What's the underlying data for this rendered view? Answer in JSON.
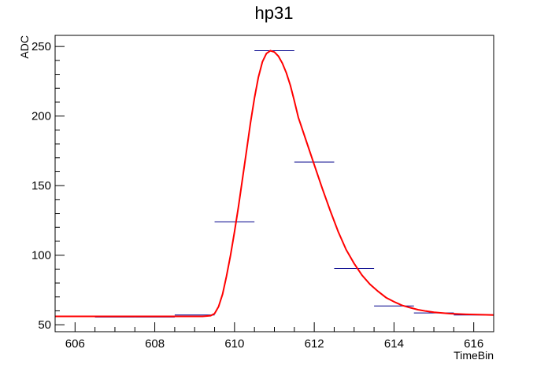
{
  "chart_data": {
    "type": "line",
    "title": "hp31",
    "xlabel": "TimeBin",
    "ylabel": "ADC",
    "xlim": [
      605.5,
      616.5
    ],
    "ylim": [
      45,
      258
    ],
    "x_ticks": [
      606,
      608,
      610,
      612,
      614,
      616
    ],
    "x_tick_labels": [
      "606",
      "608",
      "610",
      "612",
      "614",
      "616"
    ],
    "y_ticks": [
      50,
      100,
      150,
      200,
      250
    ],
    "y_tick_labels": [
      "50",
      "100",
      "150",
      "200",
      "250"
    ],
    "grid": false,
    "legend": "none",
    "histogram": {
      "color": "#00008b",
      "bins": [
        {
          "x": 606,
          "value": 56
        },
        {
          "x": 607,
          "value": 55.5
        },
        {
          "x": 608,
          "value": 55.5
        },
        {
          "x": 609,
          "value": 57
        },
        {
          "x": 610,
          "value": 124
        },
        {
          "x": 611,
          "value": 247
        },
        {
          "x": 612,
          "value": 167
        },
        {
          "x": 613,
          "value": 90.5
        },
        {
          "x": 614,
          "value": 63.5
        },
        {
          "x": 615,
          "value": 58.5
        },
        {
          "x": 616,
          "value": 57
        }
      ]
    },
    "fit": {
      "color": "#ff0000",
      "points": [
        [
          605.5,
          56
        ],
        [
          606,
          56
        ],
        [
          607,
          56
        ],
        [
          608,
          56
        ],
        [
          609,
          56
        ],
        [
          609.2,
          56
        ],
        [
          609.4,
          56.5
        ],
        [
          609.5,
          58
        ],
        [
          609.6,
          63
        ],
        [
          609.7,
          72
        ],
        [
          609.8,
          85
        ],
        [
          609.9,
          100
        ],
        [
          610,
          117
        ],
        [
          610.1,
          135
        ],
        [
          610.2,
          155
        ],
        [
          610.3,
          175
        ],
        [
          610.4,
          195
        ],
        [
          610.5,
          213
        ],
        [
          610.6,
          228
        ],
        [
          610.7,
          239
        ],
        [
          610.8,
          245
        ],
        [
          610.9,
          247
        ],
        [
          611,
          246
        ],
        [
          611.1,
          243
        ],
        [
          611.2,
          238
        ],
        [
          611.3,
          231
        ],
        [
          611.4,
          222
        ],
        [
          611.5,
          211
        ],
        [
          611.6,
          199
        ],
        [
          611.8,
          182
        ],
        [
          612,
          165
        ],
        [
          612.2,
          148
        ],
        [
          612.4,
          132
        ],
        [
          612.6,
          117
        ],
        [
          612.8,
          104
        ],
        [
          613,
          94
        ],
        [
          613.2,
          85.5
        ],
        [
          613.4,
          79
        ],
        [
          613.6,
          74
        ],
        [
          613.8,
          69.5
        ],
        [
          614,
          66.5
        ],
        [
          614.2,
          64
        ],
        [
          614.4,
          62.3
        ],
        [
          614.6,
          60.8
        ],
        [
          614.8,
          59.8
        ],
        [
          615,
          59
        ],
        [
          615.4,
          58
        ],
        [
          615.8,
          57.5
        ],
        [
          616.2,
          57.2
        ],
        [
          616.5,
          57
        ]
      ]
    }
  }
}
